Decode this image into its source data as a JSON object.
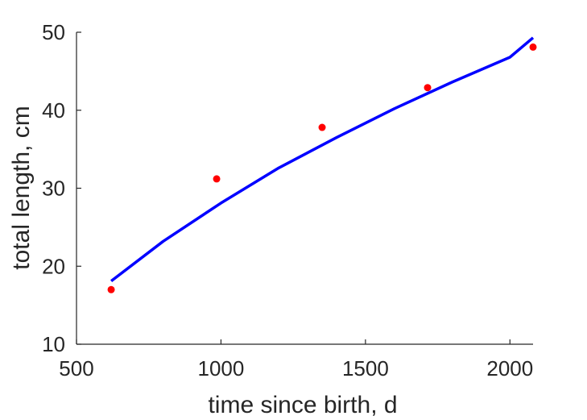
{
  "chart_data": {
    "type": "line",
    "title": "",
    "xlabel": "time since birth, d",
    "ylabel": "total length, cm",
    "xlim": [
      500,
      2080
    ],
    "ylim": [
      10,
      50
    ],
    "xticks": [
      500,
      1000,
      1500,
      2000
    ],
    "yticks": [
      10,
      20,
      30,
      40,
      50
    ],
    "xtick_labels": [
      "500",
      "1000",
      "1500",
      "2000"
    ],
    "ytick_labels": [
      "10",
      "20",
      "30",
      "40",
      "50"
    ],
    "grid": false,
    "series": [
      {
        "kind": "scatter",
        "color": "#ff0000",
        "points": [
          {
            "x": 620,
            "y": 17.0
          },
          {
            "x": 985,
            "y": 31.2
          },
          {
            "x": 1350,
            "y": 37.8
          },
          {
            "x": 1715,
            "y": 42.9
          },
          {
            "x": 2080,
            "y": 48.1
          }
        ]
      },
      {
        "kind": "line",
        "color": "#0000ff",
        "points": [
          {
            "x": 620,
            "y": 18.1
          },
          {
            "x": 800,
            "y": 23.2
          },
          {
            "x": 1000,
            "y": 28.1
          },
          {
            "x": 1200,
            "y": 32.6
          },
          {
            "x": 1400,
            "y": 36.5
          },
          {
            "x": 1600,
            "y": 40.2
          },
          {
            "x": 1800,
            "y": 43.6
          },
          {
            "x": 2000,
            "y": 46.8
          },
          {
            "x": 2080,
            "y": 49.3
          }
        ]
      }
    ]
  }
}
